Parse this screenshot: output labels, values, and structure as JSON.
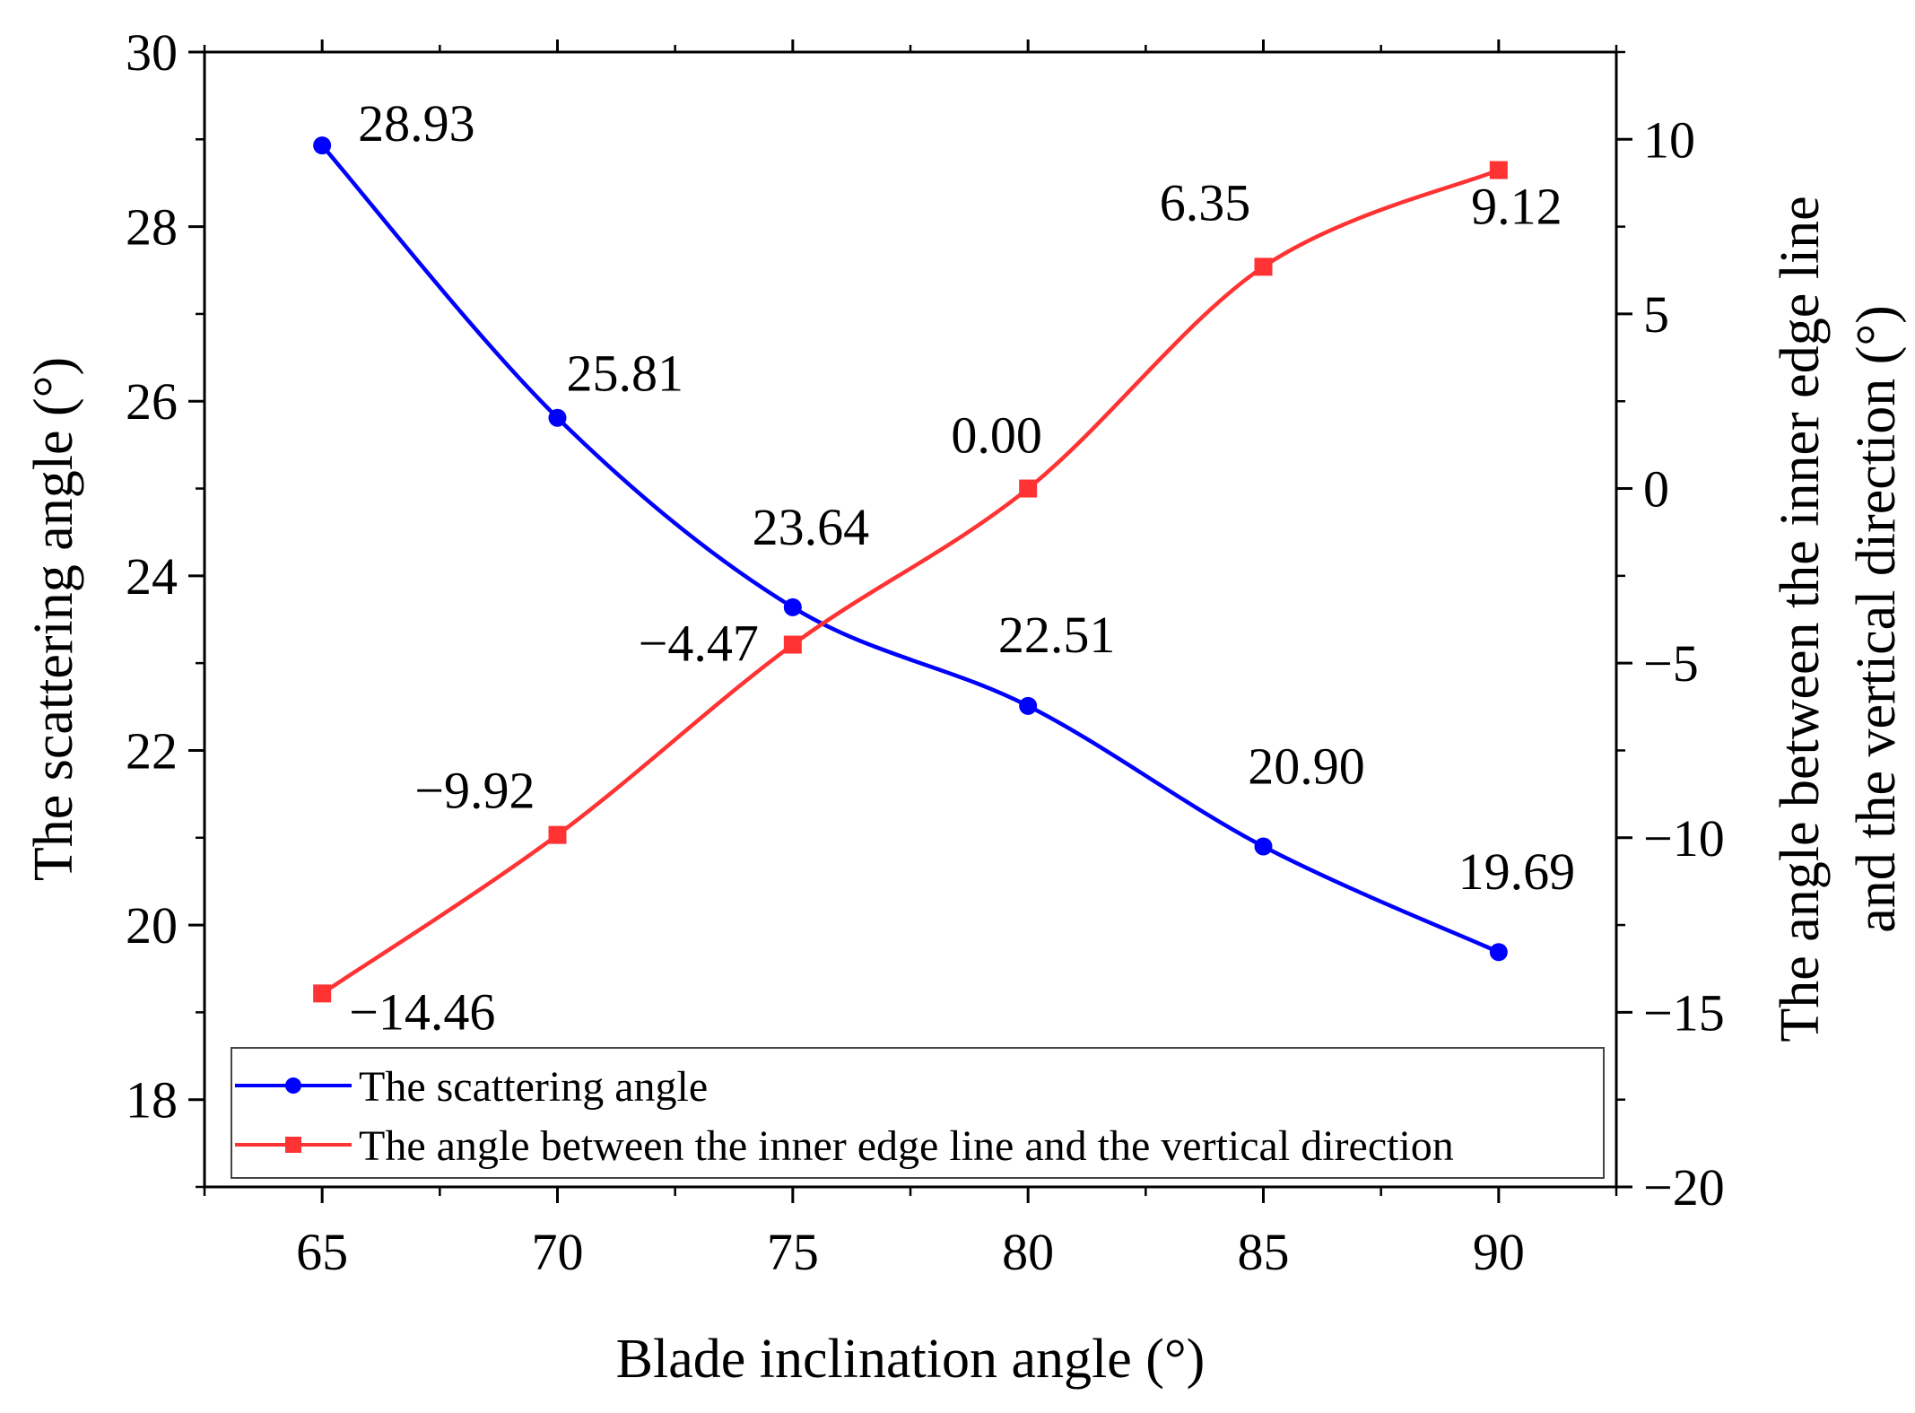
{
  "chart_data": {
    "type": "line",
    "title": "",
    "xlabel": "Blade inclination angle (°)",
    "ylabel_left": "The scattering angle (°)",
    "ylabel_right_line1": "The angle between the inner edge line",
    "ylabel_right_line2": "and the vertical direction (°)",
    "x": [
      65,
      70,
      75,
      80,
      85,
      90
    ],
    "x_ticks": [
      "65",
      "70",
      "75",
      "80",
      "85",
      "90"
    ],
    "xlim": [
      62.5,
      92.5
    ],
    "ylim_left": [
      17,
      30
    ],
    "ylim_right": [
      -20,
      12.5
    ],
    "y_ticks_left": [
      "18",
      "20",
      "22",
      "24",
      "26",
      "28",
      "30"
    ],
    "y_ticks_right": [
      "−20",
      "−15",
      "−10",
      "−5",
      "0",
      "5",
      "10"
    ],
    "grid": false,
    "legend_position": "bottom-left",
    "series": [
      {
        "name": "The scattering angle",
        "axis": "left",
        "color": "#0000ff",
        "marker": "circle",
        "values": [
          28.93,
          25.81,
          23.64,
          22.51,
          20.9,
          19.69
        ],
        "labels": [
          "28.93",
          "25.81",
          "23.64",
          "22.51",
          "20.90",
          "19.69"
        ]
      },
      {
        "name": "The angle between the inner edge line and the vertical direction",
        "axis": "right",
        "color": "#ff3333",
        "marker": "square",
        "values": [
          -14.46,
          -9.92,
          -4.47,
          0.0,
          6.35,
          9.12
        ],
        "labels": [
          "−14.46",
          "−9.92",
          "−4.47",
          "0.00",
          "6.35",
          "9.12"
        ]
      }
    ]
  }
}
